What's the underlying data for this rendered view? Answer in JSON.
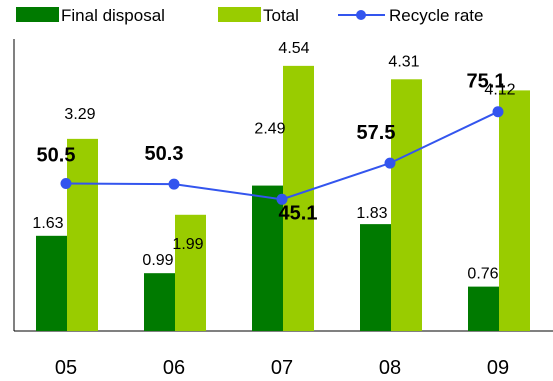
{
  "chart_data": {
    "type": "bar",
    "categories": [
      "05",
      "06",
      "07",
      "08",
      "09"
    ],
    "series": [
      {
        "name": "Final disposal",
        "kind": "bar",
        "values": [
          1.63,
          0.99,
          2.49,
          1.83,
          0.76
        ],
        "color": "#007a00"
      },
      {
        "name": "Total",
        "kind": "bar",
        "values": [
          3.29,
          1.99,
          4.54,
          4.31,
          4.12
        ],
        "color": "#99cc00"
      },
      {
        "name": "Recycle rate",
        "kind": "line",
        "values": [
          50.5,
          50.3,
          45.1,
          57.5,
          75.1
        ],
        "color": "#3355ee"
      }
    ],
    "ylim_bars": [
      0,
      5
    ],
    "ylim_rate": [
      0,
      100
    ],
    "grid": false,
    "legend_position": "top",
    "title": "",
    "xlabel": "",
    "ylabel": ""
  }
}
